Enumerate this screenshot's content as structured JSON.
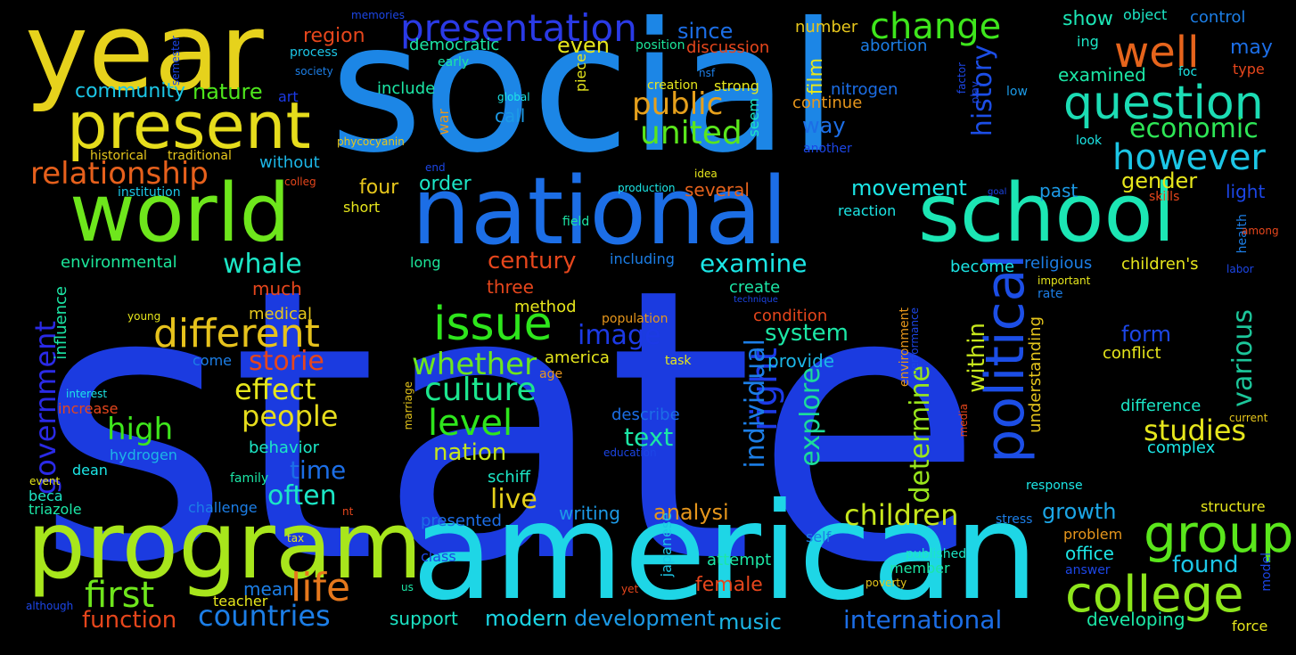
{
  "words": [
    {
      "text": "state",
      "color": "#1b3be0"
    },
    {
      "text": "social",
      "color": "#1c86e6"
    },
    {
      "text": "american",
      "color": "#1ed6e6"
    },
    {
      "text": "year",
      "color": "#e6d21c"
    },
    {
      "text": "national",
      "color": "#1c6ee6"
    },
    {
      "text": "program",
      "color": "#a8e61c"
    },
    {
      "text": "world",
      "color": "#6ee61c"
    },
    {
      "text": "school",
      "color": "#1ce6b4"
    },
    {
      "text": "present",
      "color": "#e6dc1c"
    },
    {
      "text": "political",
      "color": "#1c4ee6"
    },
    {
      "text": "group",
      "color": "#5ae61c"
    },
    {
      "text": "college",
      "color": "#8ee61c"
    },
    {
      "text": "question",
      "color": "#1cdcb4"
    },
    {
      "text": "issue",
      "color": "#2ee61c"
    },
    {
      "text": "well",
      "color": "#e6641c"
    },
    {
      "text": "different",
      "color": "#e6c21c"
    },
    {
      "text": "life",
      "color": "#e6781c"
    },
    {
      "text": "presentation",
      "color": "#2a3ae6"
    },
    {
      "text": "change",
      "color": "#3ee61c"
    },
    {
      "text": "first",
      "color": "#6ee61c"
    },
    {
      "text": "level",
      "color": "#2ee61c"
    },
    {
      "text": "right",
      "color": "#1c3ae6"
    },
    {
      "text": "however",
      "color": "#1cc6e6"
    },
    {
      "text": "united",
      "color": "#5ae61c"
    },
    {
      "text": "public",
      "color": "#e6a01c"
    },
    {
      "text": "government",
      "color": "#2a2ae6"
    },
    {
      "text": "countries",
      "color": "#1c7ee6"
    },
    {
      "text": "culture",
      "color": "#1ce68e"
    },
    {
      "text": "whether",
      "color": "#6ee61c"
    },
    {
      "text": "relationship",
      "color": "#e6601c"
    },
    {
      "text": "children",
      "color": "#c6e61c"
    },
    {
      "text": "studies",
      "color": "#e6e61c"
    },
    {
      "text": "international",
      "color": "#1c6ee6"
    },
    {
      "text": "people",
      "color": "#e6dc1c"
    },
    {
      "text": "high",
      "color": "#3ee61c"
    },
    {
      "text": "effect",
      "color": "#e6e61c"
    },
    {
      "text": "explore",
      "color": "#1cdc9a"
    },
    {
      "text": "economic",
      "color": "#2ee656"
    },
    {
      "text": "history",
      "color": "#1c4ee6"
    },
    {
      "text": "image",
      "color": "#1c3ae6"
    },
    {
      "text": "storie",
      "color": "#e6461c"
    },
    {
      "text": "individual",
      "color": "#1c7ee6"
    },
    {
      "text": "examine",
      "color": "#1ce6e6"
    },
    {
      "text": "determine",
      "color": "#9ae61c"
    },
    {
      "text": "various",
      "color": "#1cc69a"
    },
    {
      "text": "often",
      "color": "#1ce6c6"
    },
    {
      "text": "live",
      "color": "#e6d21c"
    },
    {
      "text": "time",
      "color": "#1c6ee6"
    },
    {
      "text": "text",
      "color": "#1ce6a6"
    },
    {
      "text": "nation",
      "color": "#c6e61c"
    },
    {
      "text": "function",
      "color": "#e6461c"
    },
    {
      "text": "whale",
      "color": "#1ce6c6"
    },
    {
      "text": "system",
      "color": "#1ce6a6"
    },
    {
      "text": "century",
      "color": "#e6461c"
    },
    {
      "text": "analysi",
      "color": "#e6961c"
    },
    {
      "text": "growth",
      "color": "#1ca6e6"
    },
    {
      "text": "form",
      "color": "#1c46e6"
    },
    {
      "text": "nature",
      "color": "#4ee61c"
    },
    {
      "text": "movement",
      "color": "#1ce6e6"
    },
    {
      "text": "modern",
      "color": "#1cd6e6"
    },
    {
      "text": "development",
      "color": "#1c9ae6"
    },
    {
      "text": "music",
      "color": "#1cb6e6"
    },
    {
      "text": "found",
      "color": "#1cc6e6"
    },
    {
      "text": "within",
      "color": "#c6e61c"
    },
    {
      "text": "gender",
      "color": "#e6e61c"
    },
    {
      "text": "community",
      "color": "#1cc6e6"
    },
    {
      "text": "region",
      "color": "#e6461c"
    },
    {
      "text": "way",
      "color": "#1c6ee6"
    },
    {
      "text": "since",
      "color": "#1c6ee6"
    },
    {
      "text": "even",
      "color": "#e6e61c"
    },
    {
      "text": "order",
      "color": "#1ce6c6"
    },
    {
      "text": "four",
      "color": "#e6c61c"
    },
    {
      "text": "film",
      "color": "#e6e61c"
    },
    {
      "text": "show",
      "color": "#1ce6b6"
    },
    {
      "text": "may",
      "color": "#1c6ee6"
    },
    {
      "text": "female",
      "color": "#e6461c"
    },
    {
      "text": "writing",
      "color": "#1c9ae6"
    },
    {
      "text": "developing",
      "color": "#1ce6a6"
    },
    {
      "text": "office",
      "color": "#1ce6e6"
    },
    {
      "text": "support",
      "color": "#1ce6c6"
    },
    {
      "text": "mean",
      "color": "#1c7ee6"
    },
    {
      "text": "environmental",
      "color": "#1ce69a"
    },
    {
      "text": "democratic",
      "color": "#1ce6a6"
    },
    {
      "text": "three",
      "color": "#e6461c"
    },
    {
      "text": "much",
      "color": "#e6461c"
    },
    {
      "text": "call",
      "color": "#1c9ae6"
    },
    {
      "text": "several",
      "color": "#e6621c"
    },
    {
      "text": "past",
      "color": "#1c9ae6"
    },
    {
      "text": "light",
      "color": "#1c46e6"
    },
    {
      "text": "examined",
      "color": "#1ce6a6"
    },
    {
      "text": "religious",
      "color": "#1c7ee6"
    },
    {
      "text": "children's",
      "color": "#e6e61c"
    },
    {
      "text": "behavior",
      "color": "#1ce6c6"
    },
    {
      "text": "difference",
      "color": "#1ce6c6"
    },
    {
      "text": "complex",
      "color": "#1ce6e6"
    },
    {
      "text": "provide",
      "color": "#1cb6e6"
    },
    {
      "text": "conflict",
      "color": "#e6e61c"
    },
    {
      "text": "medical",
      "color": "#e6c61c"
    },
    {
      "text": "without",
      "color": "#1cb6e6"
    },
    {
      "text": "increase",
      "color": "#e6461c"
    },
    {
      "text": "hydrogen",
      "color": "#1cb6e6"
    },
    {
      "text": "nitrogen",
      "color": "#1c6ee6"
    },
    {
      "text": "method",
      "color": "#e6e61c"
    },
    {
      "text": "america",
      "color": "#e6e61c"
    },
    {
      "text": "describe",
      "color": "#1c6ee6"
    },
    {
      "text": "schiff",
      "color": "#1ce6c6"
    },
    {
      "text": "presented",
      "color": "#1c6ee6"
    },
    {
      "text": "understanding",
      "color": "#e6c61c"
    },
    {
      "text": "japanese",
      "color": "#1cc6e6"
    },
    {
      "text": "create",
      "color": "#1ce6a6"
    },
    {
      "text": "condition",
      "color": "#e6461c"
    },
    {
      "text": "become",
      "color": "#1ce6e6"
    },
    {
      "text": "discussion",
      "color": "#e6461c"
    },
    {
      "text": "continue",
      "color": "#e6961c"
    },
    {
      "text": "abortion",
      "color": "#1c7ee6"
    },
    {
      "text": "number",
      "color": "#e6c61c"
    },
    {
      "text": "include",
      "color": "#1ce6a6"
    },
    {
      "text": "influence",
      "color": "#1ce6a6"
    },
    {
      "text": "institution",
      "color": "#1cc6e6"
    },
    {
      "text": "historical",
      "color": "#e6c61c"
    },
    {
      "text": "traditional",
      "color": "#e6c61c"
    },
    {
      "text": "short",
      "color": "#e6e61c"
    },
    {
      "text": "long",
      "color": "#1ce69a"
    },
    {
      "text": "including",
      "color": "#1c7ee6"
    },
    {
      "text": "piece",
      "color": "#e6e61c"
    },
    {
      "text": "war",
      "color": "#e6961c"
    },
    {
      "text": "art",
      "color": "#1c3ae6"
    },
    {
      "text": "object",
      "color": "#1ce6c6"
    },
    {
      "text": "control",
      "color": "#1c7ee6"
    },
    {
      "text": "type",
      "color": "#e6461c"
    },
    {
      "text": "ing",
      "color": "#1ce6c6"
    },
    {
      "text": "attempt",
      "color": "#1ce6a6"
    },
    {
      "text": "member",
      "color": "#1ce6a6"
    },
    {
      "text": "answer",
      "color": "#1c46e6"
    },
    {
      "text": "model",
      "color": "#1c46e6"
    },
    {
      "text": "force",
      "color": "#e6e61c"
    },
    {
      "text": "structure",
      "color": "#e6e61c"
    },
    {
      "text": "problem",
      "color": "#e6961c"
    },
    {
      "text": "reaction",
      "color": "#1ce6e6"
    },
    {
      "text": "creation",
      "color": "#e6e61c"
    },
    {
      "text": "strong",
      "color": "#e6e61c"
    },
    {
      "text": "seem",
      "color": "#1ce6c6"
    },
    {
      "text": "position",
      "color": "#1ce69a"
    },
    {
      "text": "process",
      "color": "#1cc6e6"
    },
    {
      "text": "early",
      "color": "#1ce6a6"
    },
    {
      "text": "society",
      "color": "#1c7ee6"
    },
    {
      "text": "semester",
      "color": "#1c46e6"
    },
    {
      "text": "memories",
      "color": "#1c46e6"
    },
    {
      "text": "phycocyanin",
      "color": "#e6c61c"
    },
    {
      "text": "global",
      "color": "#1ce6e6"
    },
    {
      "text": "nsf",
      "color": "#1c7ee6"
    },
    {
      "text": "factor",
      "color": "#1c46e6"
    },
    {
      "text": "play",
      "color": "#1c46e6"
    },
    {
      "text": "low",
      "color": "#1c9ae6"
    },
    {
      "text": "foc",
      "color": "#1ce6e6"
    },
    {
      "text": "look",
      "color": "#1ce6e6"
    },
    {
      "text": "another",
      "color": "#1c46e6"
    },
    {
      "text": "idea",
      "color": "#e6e61c"
    },
    {
      "text": "end",
      "color": "#1c46e6"
    },
    {
      "text": "production",
      "color": "#1ce6e6"
    },
    {
      "text": "colleg",
      "color": "#e6461c"
    },
    {
      "text": "field",
      "color": "#1ce6a6"
    },
    {
      "text": "goal",
      "color": "#1c46e6"
    },
    {
      "text": "skills",
      "color": "#e6461c"
    },
    {
      "text": "health",
      "color": "#1c7ee6"
    },
    {
      "text": "among",
      "color": "#e6461c"
    },
    {
      "text": "labor",
      "color": "#1c46e6"
    },
    {
      "text": "important",
      "color": "#e6e61c"
    },
    {
      "text": "rate",
      "color": "#1c7ee6"
    },
    {
      "text": "technique",
      "color": "#1c46e6"
    },
    {
      "text": "young",
      "color": "#e6e61c"
    },
    {
      "text": "population",
      "color": "#e6961c"
    },
    {
      "text": "environment",
      "color": "#e6961c"
    },
    {
      "text": "performance",
      "color": "#1c46e6"
    },
    {
      "text": "task",
      "color": "#e6e61c"
    },
    {
      "text": "age",
      "color": "#e6961c"
    },
    {
      "text": "come",
      "color": "#1c7ee6"
    },
    {
      "text": "interest",
      "color": "#1ce6e6"
    },
    {
      "text": "marriage",
      "color": "#e6c61c"
    },
    {
      "text": "media",
      "color": "#e6461c"
    },
    {
      "text": "current",
      "color": "#e6c61c"
    },
    {
      "text": "education",
      "color": "#1c46e6"
    },
    {
      "text": "dean",
      "color": "#1ce6e6"
    },
    {
      "text": "family",
      "color": "#1ce6a6"
    },
    {
      "text": "event",
      "color": "#e6e61c"
    },
    {
      "text": "beca",
      "color": "#1ce6c6"
    },
    {
      "text": "triazole",
      "color": "#1ce6a6"
    },
    {
      "text": "challenge",
      "color": "#1c7ee6"
    },
    {
      "text": "nt",
      "color": "#e6461c"
    },
    {
      "text": "teacher",
      "color": "#e6e61c"
    },
    {
      "text": "tax",
      "color": "#e6e61c"
    },
    {
      "text": "class",
      "color": "#1c46e6"
    },
    {
      "text": "us",
      "color": "#1ce6a6"
    },
    {
      "text": "yet",
      "color": "#e6461c"
    },
    {
      "text": "although",
      "color": "#1c46e6"
    },
    {
      "text": "self",
      "color": "#1c7ee6"
    },
    {
      "text": "stress",
      "color": "#1c7ee6"
    },
    {
      "text": "response",
      "color": "#1ce6e6"
    },
    {
      "text": "published",
      "color": "#1ce6c6"
    },
    {
      "text": "poverty",
      "color": "#e6c61c"
    }
  ]
}
